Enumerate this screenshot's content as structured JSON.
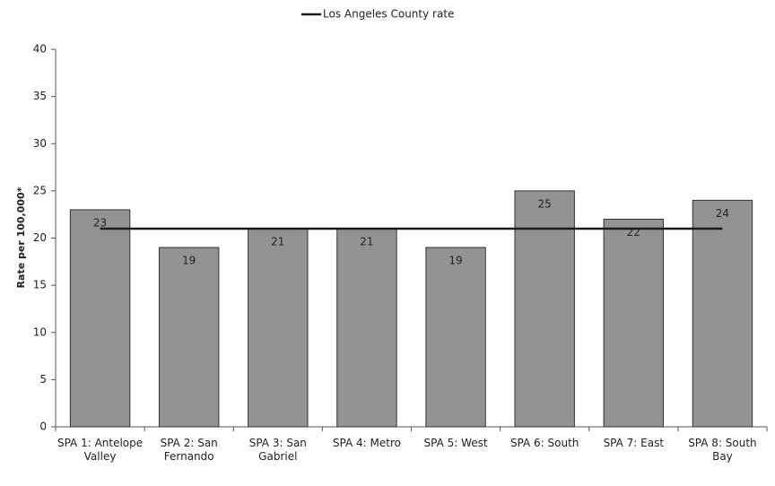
{
  "chart_data": {
    "type": "bar",
    "y_label": "Rate per 100,000*",
    "categories": [
      "SPA 1: Antelope Valley",
      "SPA 2: San Fernando",
      "SPA 3: San Gabriel",
      "SPA 4: Metro",
      "SPA 5: West",
      "SPA 6: South",
      "SPA 7: East",
      "SPA 8: South Bay"
    ],
    "values": [
      23,
      19,
      21,
      21,
      19,
      25,
      22,
      24
    ],
    "color": "#939393",
    "reference_line": {
      "name": "Los Angeles County rate",
      "color": "#1a1a1a",
      "values": [
        21,
        21,
        21,
        21,
        21,
        21,
        21,
        21
      ]
    },
    "ylim": [
      0,
      40
    ],
    "yticks": [
      0,
      5,
      10,
      15,
      20,
      25,
      30,
      35,
      40
    ],
    "legend": "top"
  }
}
